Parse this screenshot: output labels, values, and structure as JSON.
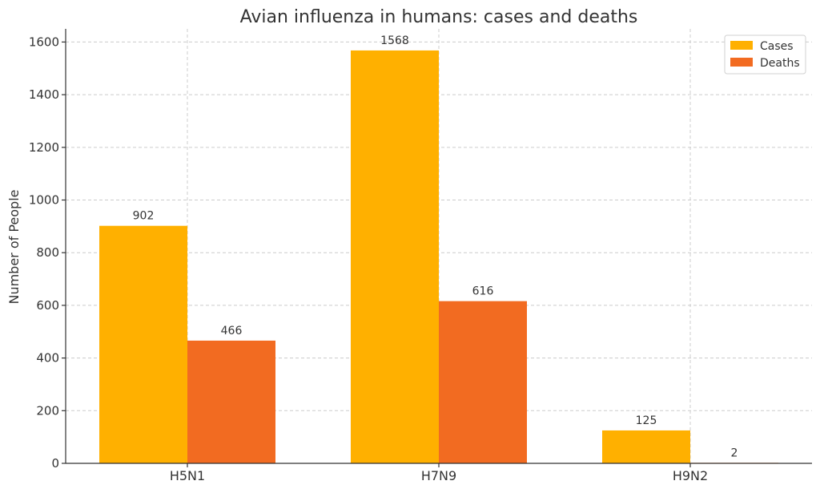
{
  "chart_data": {
    "type": "bar",
    "title": "Avian influenza in humans: cases and deaths",
    "xlabel": "",
    "ylabel": "Number of People",
    "categories": [
      "H5N1",
      "H7N9",
      "H9N2"
    ],
    "series": [
      {
        "name": "Cases",
        "values": [
          902,
          1568,
          125
        ],
        "color": "#FFB000"
      },
      {
        "name": "Deaths",
        "values": [
          466,
          616,
          2
        ],
        "color": "#F26B21"
      }
    ],
    "ylim": [
      0,
      1650
    ],
    "yticks": [
      0,
      200,
      400,
      600,
      800,
      1000,
      1200,
      1400,
      1600
    ],
    "grid": true,
    "legend_position": "top-right",
    "data_labels": true
  }
}
